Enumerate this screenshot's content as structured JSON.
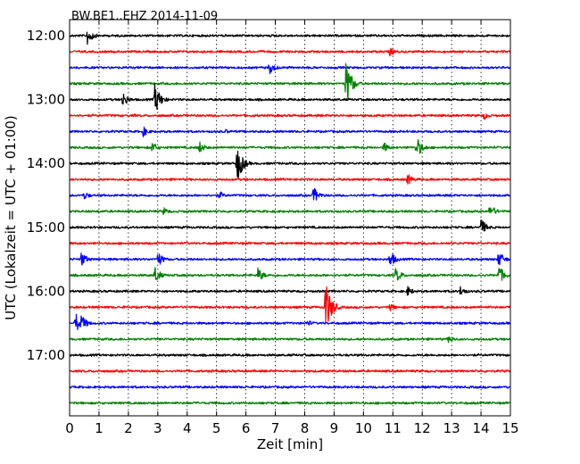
{
  "chart_data": {
    "type": "line",
    "title": "BW.BE1..EHZ 2014-11-09",
    "xlabel": "Zeit  [min]",
    "ylabel": "UTC (Lokalzeit = UTC + 01:00)",
    "xlim": [
      0,
      15
    ],
    "x_ticks": [
      "0",
      "1",
      "2",
      "3",
      "4",
      "5",
      "6",
      "7",
      "8",
      "9",
      "10",
      "11",
      "12",
      "13",
      "14",
      "15"
    ],
    "y_ticks": [
      "12:00",
      "13:00",
      "14:00",
      "15:00",
      "16:00",
      "17:00"
    ],
    "grid": "vertical dotted",
    "colors": [
      "#000000",
      "#ff0000",
      "#0000ff",
      "#008000"
    ],
    "trace_start_times": [
      "12:00",
      "12:15",
      "12:30",
      "12:45",
      "13:00",
      "13:15",
      "13:30",
      "13:45",
      "14:00",
      "14:15",
      "14:30",
      "14:45",
      "15:00",
      "15:15",
      "15:30",
      "15:45",
      "16:00",
      "16:15",
      "16:30",
      "16:45",
      "17:00",
      "17:15",
      "17:30",
      "17:45"
    ],
    "series": [
      {
        "values": [
          [
            0.6,
            11
          ],
          [
            7.0,
            2
          ]
        ]
      },
      {
        "values": [
          [
            10.9,
            5
          ]
        ]
      },
      {
        "values": [
          [
            6.8,
            8
          ]
        ]
      },
      {
        "values": [
          [
            9.4,
            28
          ],
          [
            8.0,
            2
          ]
        ]
      },
      {
        "values": [
          [
            1.8,
            9
          ],
          [
            2.9,
            18
          ]
        ]
      },
      {
        "values": [
          [
            14.1,
            5
          ],
          [
            2.2,
            2
          ]
        ]
      },
      {
        "values": [
          [
            2.5,
            6
          ],
          [
            5.3,
            3
          ]
        ]
      },
      {
        "values": [
          [
            2.8,
            7
          ],
          [
            4.4,
            8
          ],
          [
            10.7,
            6
          ],
          [
            11.8,
            13
          ]
        ]
      },
      {
        "values": [
          [
            5.7,
            22
          ]
        ]
      },
      {
        "values": [
          [
            11.5,
            7
          ]
        ]
      },
      {
        "values": [
          [
            0.5,
            5
          ],
          [
            5.1,
            5
          ],
          [
            8.3,
            10
          ]
        ]
      },
      {
        "values": [
          [
            3.2,
            5
          ],
          [
            14.3,
            9
          ]
        ]
      },
      {
        "values": [
          [
            14.0,
            10
          ]
        ]
      },
      {
        "values": []
      },
      {
        "values": [
          [
            0.4,
            9
          ],
          [
            3.0,
            9
          ],
          [
            10.9,
            10
          ],
          [
            14.6,
            10
          ]
        ]
      },
      {
        "values": [
          [
            2.9,
            10
          ],
          [
            6.4,
            9
          ],
          [
            11.1,
            9
          ],
          [
            14.6,
            12
          ]
        ]
      },
      {
        "values": [
          [
            11.5,
            6
          ],
          [
            13.3,
            6
          ]
        ]
      },
      {
        "values": [
          [
            8.7,
            32
          ],
          [
            10.9,
            5
          ]
        ]
      },
      {
        "values": [
          [
            0.2,
            12
          ],
          [
            0.4,
            10
          ],
          [
            8.1,
            4
          ]
        ]
      },
      {
        "values": [
          [
            12.9,
            5
          ]
        ]
      },
      {
        "values": []
      },
      {
        "values": []
      },
      {
        "values": []
      },
      {
        "values": []
      }
    ]
  }
}
